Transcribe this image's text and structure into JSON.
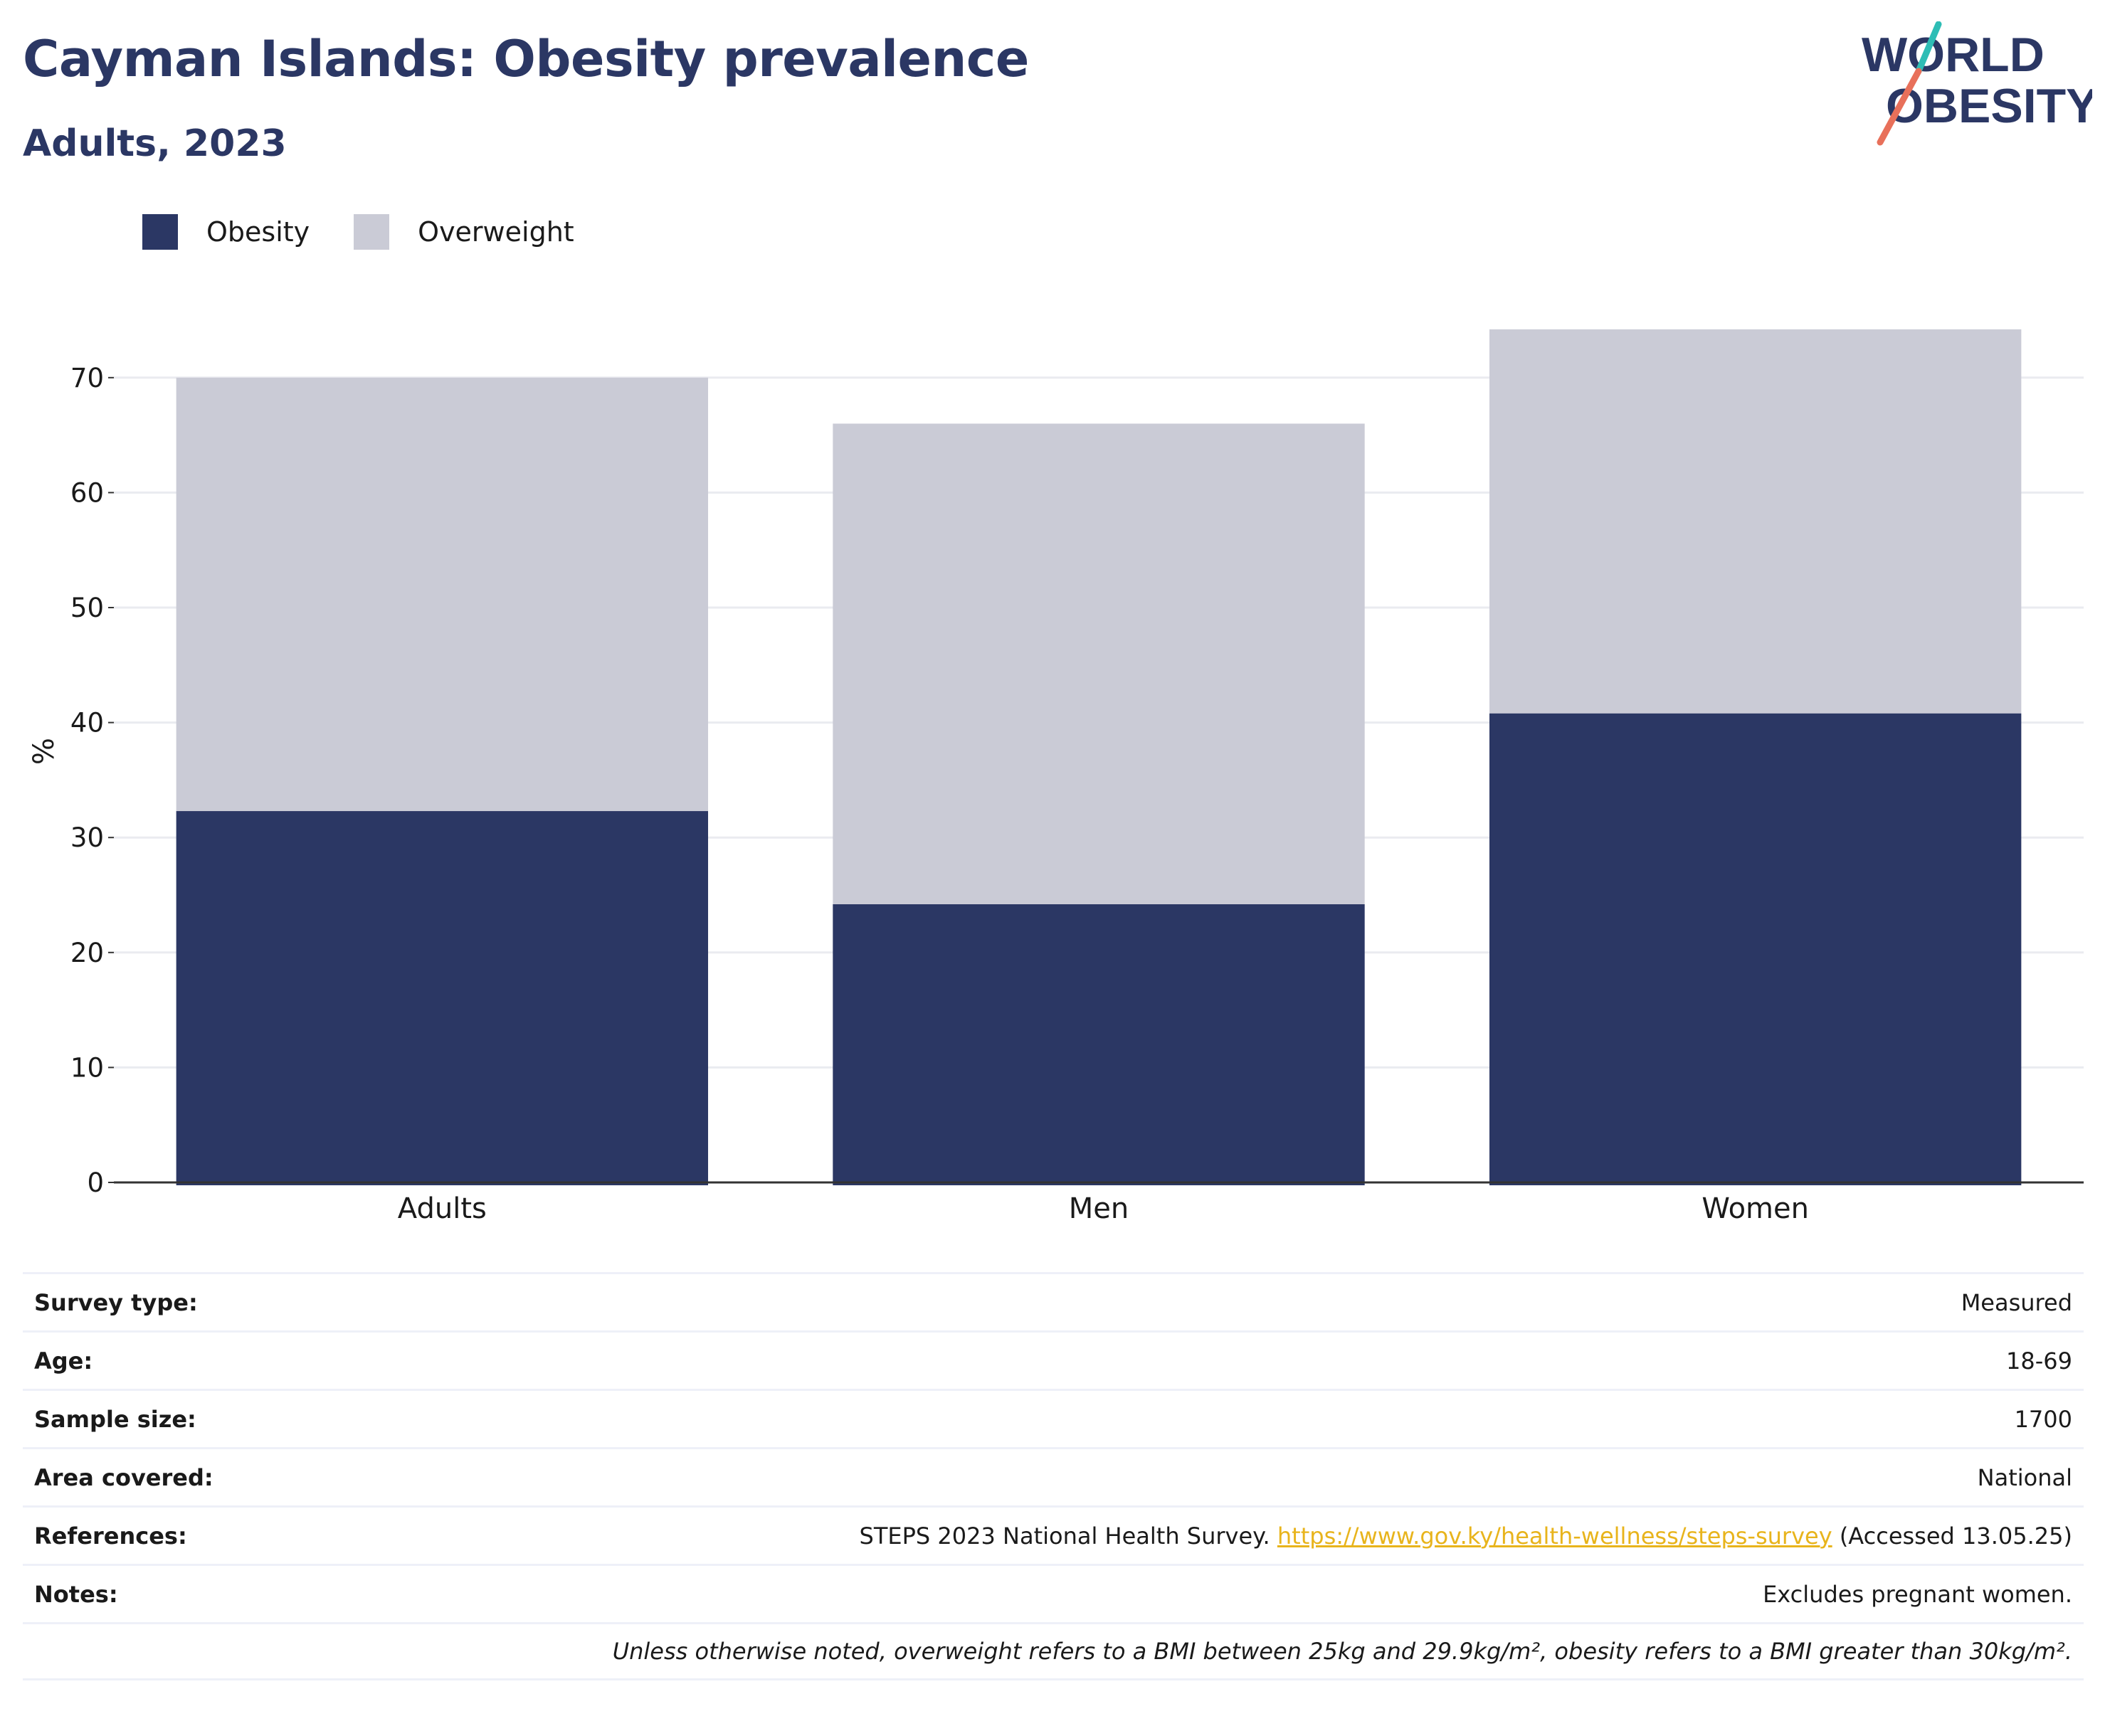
{
  "header": {
    "title": "Cayman Islands: Obesity prevalence",
    "subtitle": "Adults, 2023"
  },
  "logo": {
    "line1": "WORLD",
    "line2": "OBESITY",
    "accent_colors": [
      "#2ebdb5",
      "#e8705a"
    ]
  },
  "legend": [
    {
      "label": "Obesity",
      "color": "#2b3764"
    },
    {
      "label": "Overweight",
      "color": "#cacbd6"
    }
  ],
  "chart_data": {
    "type": "bar",
    "stacked": true,
    "categories": [
      "Adults",
      "Men",
      "Women"
    ],
    "series": [
      {
        "name": "Obesity",
        "color": "#2b3764",
        "values": [
          32.3,
          24.2,
          40.8
        ]
      },
      {
        "name": "Overweight",
        "color": "#cacbd6",
        "values": [
          37.7,
          41.8,
          33.4
        ]
      }
    ],
    "title": "Cayman Islands: Obesity prevalence",
    "subtitle": "Adults, 2023",
    "xlabel": "",
    "ylabel": "%",
    "ylim": [
      0,
      75
    ],
    "yticks": [
      0,
      10,
      20,
      30,
      40,
      50,
      60,
      70
    ],
    "grid": true,
    "legend_position": "top-left"
  },
  "info": {
    "survey_type": {
      "label": "Survey type:",
      "value": "Measured"
    },
    "age": {
      "label": "Age:",
      "value": "18-69"
    },
    "sample_size": {
      "label": "Sample size:",
      "value": "1700"
    },
    "area_covered": {
      "label": "Area covered:",
      "value": "National"
    },
    "references": {
      "label": "References:",
      "text_before": "STEPS 2023 National Health Survey.",
      "link": "https://www.gov.ky/health-wellness/steps-survey",
      "text_after": "(Accessed 13.05.25)"
    },
    "notes": {
      "label": "Notes:",
      "value": "Excludes pregnant women."
    },
    "footnote": "Unless otherwise noted, overweight refers to a BMI between 25kg and 29.9kg/m², obesity refers to a BMI greater than 30kg/m²."
  }
}
